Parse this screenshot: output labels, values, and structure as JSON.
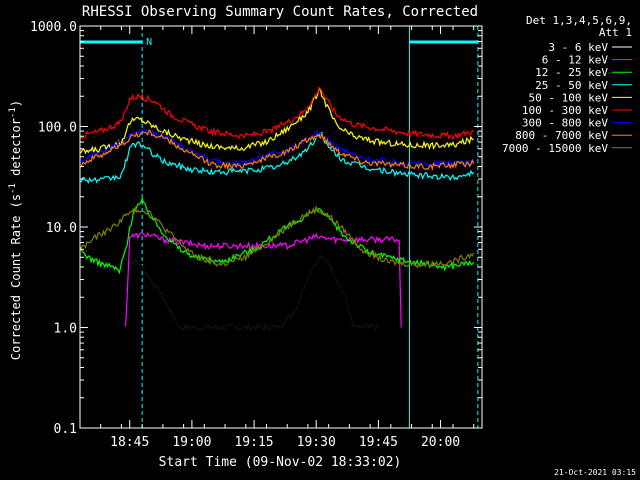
{
  "chart_data": {
    "type": "line",
    "title": "RHESSI Observing Summary Count Rates, Corrected",
    "xlabel": "Start Time (09-Nov-02 18:33:02)",
    "ylabel_main": "Corrected Count Rate (s",
    "ylabel_sup1": "-1",
    "ylabel_mid": " detector",
    "ylabel_sup2": "-1",
    "ylabel_end": ")",
    "y_scale": "log",
    "ylim": [
      0.1,
      1000
    ],
    "xlim_minutes": [
      0,
      97
    ],
    "y_ticks": [
      {
        "v": 1000,
        "label": "1000.0"
      },
      {
        "v": 100,
        "label": "100.0"
      },
      {
        "v": 10,
        "label": "10.0"
      },
      {
        "v": 1,
        "label": "1.0"
      },
      {
        "v": 0.1,
        "label": "0.1"
      }
    ],
    "x_ticks": [
      {
        "m": 12,
        "label": "18:45"
      },
      {
        "m": 27,
        "label": "19:00"
      },
      {
        "m": 42,
        "label": "19:15"
      },
      {
        "m": 57,
        "label": "19:30"
      },
      {
        "m": 72,
        "label": "19:45"
      },
      {
        "m": 87,
        "label": "20:00"
      }
    ],
    "legend_header": [
      "Det 1,3,4,5,6,9,",
      "Att 1"
    ],
    "legend_placement": "right",
    "series": [
      {
        "name": "3 - 6 keV",
        "color": "#000000",
        "points": [
          [
            11,
            4.5
          ],
          [
            14,
            4.5
          ],
          [
            17,
            3
          ],
          [
            20,
            2
          ],
          [
            24,
            1
          ],
          [
            48,
            1
          ],
          [
            52,
            1.5
          ],
          [
            54,
            2.5
          ],
          [
            56,
            4
          ],
          [
            58,
            5
          ],
          [
            60,
            4.5
          ],
          [
            62,
            3
          ],
          [
            64,
            2
          ],
          [
            66,
            1
          ],
          [
            72,
            1
          ]
        ]
      },
      {
        "name": "6 - 12 keV",
        "color": "#ff00ff",
        "points": [
          [
            11,
            1
          ],
          [
            12,
            8
          ],
          [
            16,
            8.5
          ],
          [
            20,
            7.5
          ],
          [
            25,
            7
          ],
          [
            30,
            6.5
          ],
          [
            40,
            6.5
          ],
          [
            50,
            6.5
          ],
          [
            57,
            8
          ],
          [
            62,
            7.5
          ],
          [
            70,
            7.5
          ],
          [
            77,
            7.5
          ],
          [
            77.5,
            1
          ]
        ]
      },
      {
        "name": "12 - 25 keV",
        "color": "#00ff00",
        "points": [
          [
            0,
            6
          ],
          [
            2,
            5
          ],
          [
            4,
            4.5
          ],
          [
            6,
            4.2
          ],
          [
            8,
            4
          ],
          [
            9.5,
            3.6
          ],
          [
            11,
            6
          ],
          [
            13,
            15
          ],
          [
            15,
            18
          ],
          [
            17,
            13
          ],
          [
            19,
            10
          ],
          [
            21,
            8
          ],
          [
            24,
            6
          ],
          [
            28,
            5
          ],
          [
            34,
            4.5
          ],
          [
            42,
            6
          ],
          [
            50,
            10
          ],
          [
            56,
            14
          ],
          [
            58,
            15
          ],
          [
            60,
            12
          ],
          [
            64,
            8
          ],
          [
            70,
            5.5
          ],
          [
            80,
            4.5
          ],
          [
            88,
            4
          ],
          [
            95,
            4.5
          ]
        ]
      },
      {
        "name": "25 - 50 keV",
        "color": "#00ffff",
        "points": [
          [
            0,
            30
          ],
          [
            5,
            29
          ],
          [
            10,
            32
          ],
          [
            12,
            60
          ],
          [
            14,
            70
          ],
          [
            16,
            60
          ],
          [
            20,
            45
          ],
          [
            26,
            38
          ],
          [
            32,
            35
          ],
          [
            40,
            36
          ],
          [
            48,
            40
          ],
          [
            54,
            55
          ],
          [
            57,
            75
          ],
          [
            58,
            90
          ],
          [
            60,
            60
          ],
          [
            64,
            45
          ],
          [
            70,
            38
          ],
          [
            80,
            33
          ],
          [
            90,
            31
          ],
          [
            95,
            35
          ]
        ]
      },
      {
        "name": "50 - 100 keV",
        "color": "#ffff00",
        "points": [
          [
            0,
            55
          ],
          [
            5,
            60
          ],
          [
            10,
            70
          ],
          [
            12,
            110
          ],
          [
            14,
            120
          ],
          [
            16,
            110
          ],
          [
            20,
            90
          ],
          [
            25,
            75
          ],
          [
            30,
            65
          ],
          [
            38,
            60
          ],
          [
            45,
            70
          ],
          [
            50,
            95
          ],
          [
            55,
            140
          ],
          [
            57,
            200
          ],
          [
            58,
            230
          ],
          [
            59,
            180
          ],
          [
            62,
            100
          ],
          [
            66,
            80
          ],
          [
            72,
            70
          ],
          [
            80,
            65
          ],
          [
            90,
            65
          ],
          [
            95,
            75
          ]
        ]
      },
      {
        "name": "100 - 300 keV",
        "color": "#ff0000",
        "points": [
          [
            0,
            80
          ],
          [
            5,
            90
          ],
          [
            10,
            110
          ],
          [
            12,
            190
          ],
          [
            14,
            200
          ],
          [
            18,
            180
          ],
          [
            22,
            130
          ],
          [
            28,
            100
          ],
          [
            32,
            88
          ],
          [
            40,
            80
          ],
          [
            46,
            90
          ],
          [
            50,
            110
          ],
          [
            54,
            140
          ],
          [
            57,
            210
          ],
          [
            58,
            250
          ],
          [
            59,
            200
          ],
          [
            62,
            130
          ],
          [
            66,
            105
          ],
          [
            72,
            95
          ],
          [
            80,
            85
          ],
          [
            90,
            80
          ],
          [
            95,
            90
          ]
        ]
      },
      {
        "name": "300 - 800 keV",
        "color": "#0000ff",
        "points": [
          [
            0,
            45
          ],
          [
            5,
            55
          ],
          [
            10,
            68
          ],
          [
            12,
            80
          ],
          [
            16,
            90
          ],
          [
            20,
            80
          ],
          [
            26,
            58
          ],
          [
            32,
            45
          ],
          [
            38,
            42
          ],
          [
            44,
            50
          ],
          [
            50,
            58
          ],
          [
            56,
            80
          ],
          [
            58,
            85
          ],
          [
            62,
            62
          ],
          [
            68,
            48
          ],
          [
            74,
            45
          ],
          [
            84,
            42
          ],
          [
            95,
            45
          ]
        ]
      },
      {
        "name": "800 - 7000 keV",
        "color": "#ff8000",
        "points": [
          [
            0,
            42
          ],
          [
            5,
            52
          ],
          [
            10,
            65
          ],
          [
            12,
            78
          ],
          [
            16,
            88
          ],
          [
            20,
            78
          ],
          [
            26,
            55
          ],
          [
            32,
            42
          ],
          [
            38,
            40
          ],
          [
            44,
            47
          ],
          [
            50,
            56
          ],
          [
            56,
            78
          ],
          [
            58,
            82
          ],
          [
            62,
            58
          ],
          [
            68,
            45
          ],
          [
            74,
            42
          ],
          [
            84,
            40
          ],
          [
            95,
            43
          ]
        ]
      },
      {
        "name": "7000 - 15000 keV",
        "color": "#808000",
        "points": [
          [
            0,
            6
          ],
          [
            4,
            8
          ],
          [
            8,
            10
          ],
          [
            11,
            13
          ],
          [
            14,
            15
          ],
          [
            17,
            14
          ],
          [
            20,
            10
          ],
          [
            24,
            7
          ],
          [
            28,
            5
          ],
          [
            34,
            4.2
          ],
          [
            40,
            5
          ],
          [
            44,
            6.5
          ],
          [
            50,
            10
          ],
          [
            54,
            13
          ],
          [
            57,
            15
          ],
          [
            60,
            13
          ],
          [
            64,
            9
          ],
          [
            68,
            6
          ],
          [
            74,
            4.5
          ],
          [
            82,
            4.2
          ],
          [
            90,
            4.5
          ],
          [
            95,
            5.5
          ]
        ]
      }
    ],
    "markers": [
      {
        "m": 0,
        "color": "#00ffff",
        "style": "solid"
      },
      {
        "m": 15,
        "color": "#00ffff",
        "style": "dashed"
      },
      {
        "m": 79.5,
        "color": "#00ffff",
        "style": "solid"
      },
      {
        "m": 96,
        "color": "#00ffff",
        "style": "dashed"
      }
    ],
    "top_bars": [
      {
        "from": 0,
        "to": 15,
        "color": "#00ffff",
        "label": "N"
      },
      {
        "from": 79.5,
        "to": 96,
        "color": "#00ffff",
        "label": ""
      }
    ]
  },
  "footer": {
    "timestamp": "21-Oct-2021 03:15"
  }
}
